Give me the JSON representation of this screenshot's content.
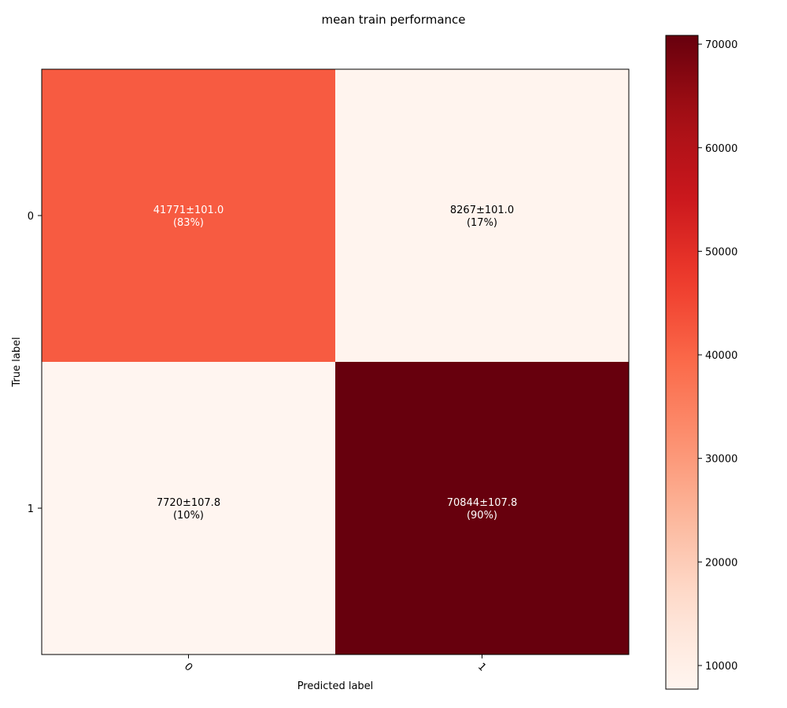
{
  "chart_data": {
    "type": "heatmap",
    "title": "mean train performance",
    "xlabel": "Predicted label",
    "ylabel": "True label",
    "x_categories": [
      "0",
      "1"
    ],
    "y_categories": [
      "0",
      "1"
    ],
    "values": [
      [
        41771,
        8267
      ],
      [
        7720,
        70844
      ]
    ],
    "cell_labels": [
      [
        {
          "line1": "41771±101.0",
          "line2": "(83%)"
        },
        {
          "line1": "8267±101.0",
          "line2": "(17%)"
        }
      ],
      [
        {
          "line1": "7720±107.8",
          "line2": "(10%)"
        },
        {
          "line1": "70844±107.8",
          "line2": "(90%)"
        }
      ]
    ],
    "colormap": "Reds",
    "colorbar": {
      "range": [
        7720,
        70844
      ],
      "ticks": [
        10000,
        20000,
        30000,
        40000,
        50000,
        60000,
        70000
      ],
      "tick_labels": [
        "10000",
        "20000",
        "30000",
        "40000",
        "50000",
        "60000",
        "70000"
      ]
    },
    "grid": false,
    "colors": {
      "low": "#fff5f0",
      "high": "#67000d",
      "text_dark": "#000000",
      "text_light": "#ffffff"
    }
  }
}
